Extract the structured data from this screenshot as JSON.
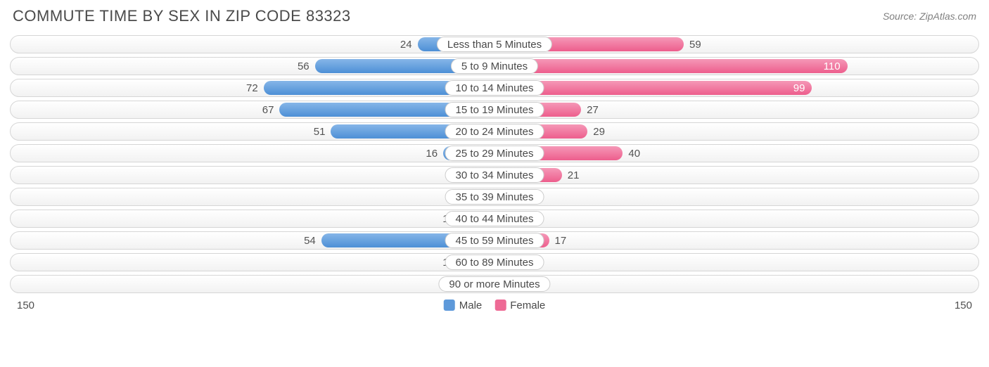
{
  "title": "COMMUTE TIME BY SEX IN ZIP CODE 83323",
  "source": "Source: ZipAtlas.com",
  "chart": {
    "type": "diverging-bar",
    "axis_max": 150,
    "axis_label_left": "150",
    "axis_label_right": "150",
    "inside_label_threshold": 90,
    "min_bar_value": 10,
    "colors": {
      "male_top": "#86b6e8",
      "male_bottom": "#4d8fd6",
      "female_top": "#f598b7",
      "female_bottom": "#ed5e8d",
      "row_border": "#d6d6d6",
      "row_bg_top": "#ffffff",
      "row_bg_bottom": "#f2f2f2",
      "text": "#4a4a4a",
      "value_outside": "#535353",
      "value_inside": "#ffffff",
      "background": "#ffffff"
    },
    "typography": {
      "title_fontsize": 22,
      "value_fontsize": 15,
      "category_fontsize": 15,
      "legend_fontsize": 15
    },
    "legend": [
      {
        "label": "Male",
        "color": "#5d99da"
      },
      {
        "label": "Female",
        "color": "#ee6a95"
      }
    ],
    "rows": [
      {
        "category": "Less than 5 Minutes",
        "male": 24,
        "female": 59
      },
      {
        "category": "5 to 9 Minutes",
        "male": 56,
        "female": 110
      },
      {
        "category": "10 to 14 Minutes",
        "male": 72,
        "female": 99
      },
      {
        "category": "15 to 19 Minutes",
        "male": 67,
        "female": 27
      },
      {
        "category": "20 to 24 Minutes",
        "male": 51,
        "female": 29
      },
      {
        "category": "25 to 29 Minutes",
        "male": 16,
        "female": 40
      },
      {
        "category": "30 to 34 Minutes",
        "male": 6,
        "female": 21
      },
      {
        "category": "35 to 39 Minutes",
        "male": 0,
        "female": 0
      },
      {
        "category": "40 to 44 Minutes",
        "male": 11,
        "female": 0
      },
      {
        "category": "45 to 59 Minutes",
        "male": 54,
        "female": 17
      },
      {
        "category": "60 to 89 Minutes",
        "male": 11,
        "female": 0
      },
      {
        "category": "90 or more Minutes",
        "male": 0,
        "female": 0
      }
    ]
  }
}
